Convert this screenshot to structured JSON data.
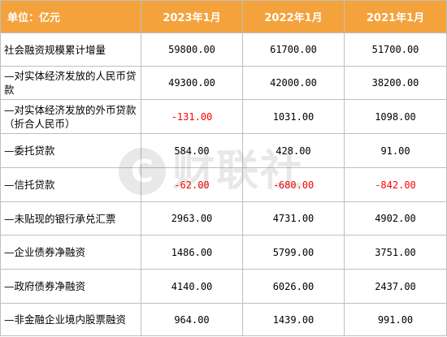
{
  "table": {
    "header": {
      "label": "单位：亿元",
      "cols": [
        "2023年1月",
        "2022年1月",
        "2021年1月"
      ]
    },
    "rows": [
      {
        "label": "社会融资规模累计增量",
        "values": [
          "59800.00",
          "61700.00",
          "51700.00"
        ]
      },
      {
        "label": "—对实体经济发放的人民币贷款",
        "values": [
          "49300.00",
          "42000.00",
          "38200.00"
        ]
      },
      {
        "label": "—对实体经济发放的外币贷款（折合人民币）",
        "values": [
          "-131.00",
          "1031.00",
          "1098.00"
        ]
      },
      {
        "label": "—委托贷款",
        "values": [
          "584.00",
          "428.00",
          "91.00"
        ]
      },
      {
        "label": "—信托贷款",
        "values": [
          "-62.00",
          "-680.00",
          "-842.00"
        ]
      },
      {
        "label": "—未贴现的银行承兑汇票",
        "values": [
          "2963.00",
          "4731.00",
          "4902.00"
        ]
      },
      {
        "label": "—企业债券净融资",
        "values": [
          "1486.00",
          "5799.00",
          "3751.00"
        ]
      },
      {
        "label": "—政府债券净融资",
        "values": [
          "4140.00",
          "6026.00",
          "2437.00"
        ]
      },
      {
        "label": "—非金融企业境内股票融资",
        "values": [
          "964.00",
          "1439.00",
          "991.00"
        ]
      }
    ]
  },
  "watermark": {
    "symbol": "C",
    "text": "财联社"
  },
  "colors": {
    "header_bg": "#f4a23c",
    "header_text": "#ffffff",
    "negative": "#ff0000",
    "border": "#bfbfbf"
  }
}
